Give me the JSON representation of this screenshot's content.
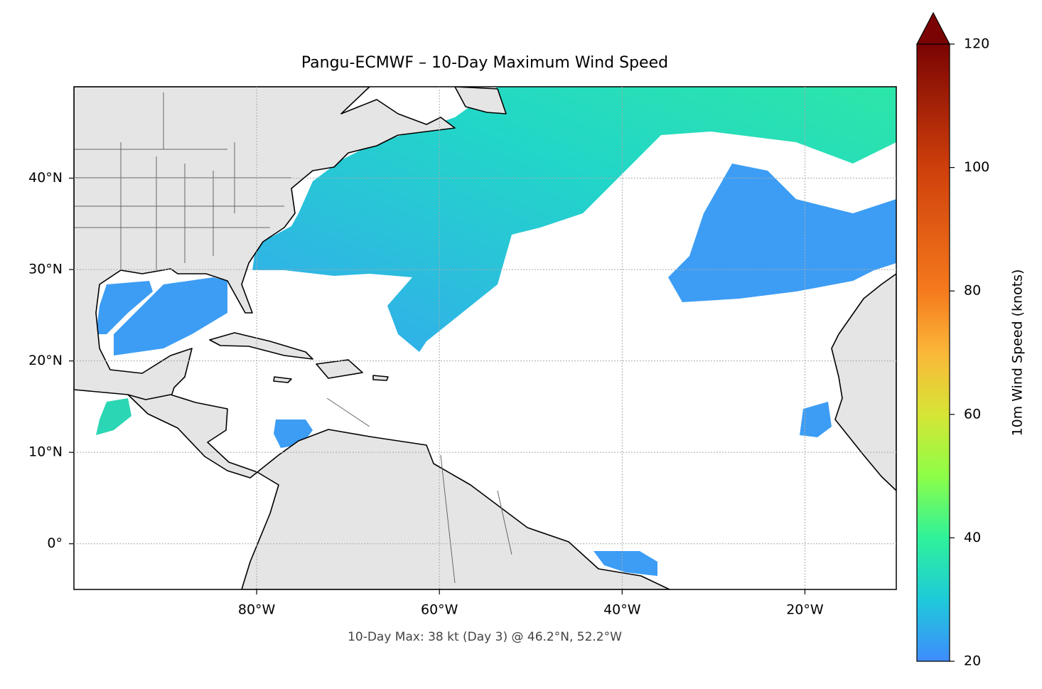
{
  "chart_data": {
    "type": "map",
    "title": "Pangu-ECMWF – 10-Day Maximum Wind Speed",
    "annotation": "10-Day Max: 38 kt (Day 3) @ 46.2°N, 52.2°W",
    "xlim": [
      -100,
      -10
    ],
    "ylim": [
      -5,
      50
    ],
    "xticks": [
      {
        "value": -80,
        "label": "80°W"
      },
      {
        "value": -60,
        "label": "60°W"
      },
      {
        "value": -40,
        "label": "40°W"
      },
      {
        "value": -20,
        "label": "20°W"
      }
    ],
    "yticks": [
      {
        "value": 0,
        "label": "0°"
      },
      {
        "value": 10,
        "label": "10°N"
      },
      {
        "value": 20,
        "label": "20°N"
      },
      {
        "value": 30,
        "label": "30°N"
      },
      {
        "value": 40,
        "label": "40°N"
      }
    ],
    "grid": true,
    "colorbar": {
      "label": "10m Wind Speed (knots)",
      "lim": [
        20,
        120
      ],
      "ticks": [
        20,
        40,
        60,
        80,
        100,
        120
      ],
      "extend": "max"
    }
  }
}
